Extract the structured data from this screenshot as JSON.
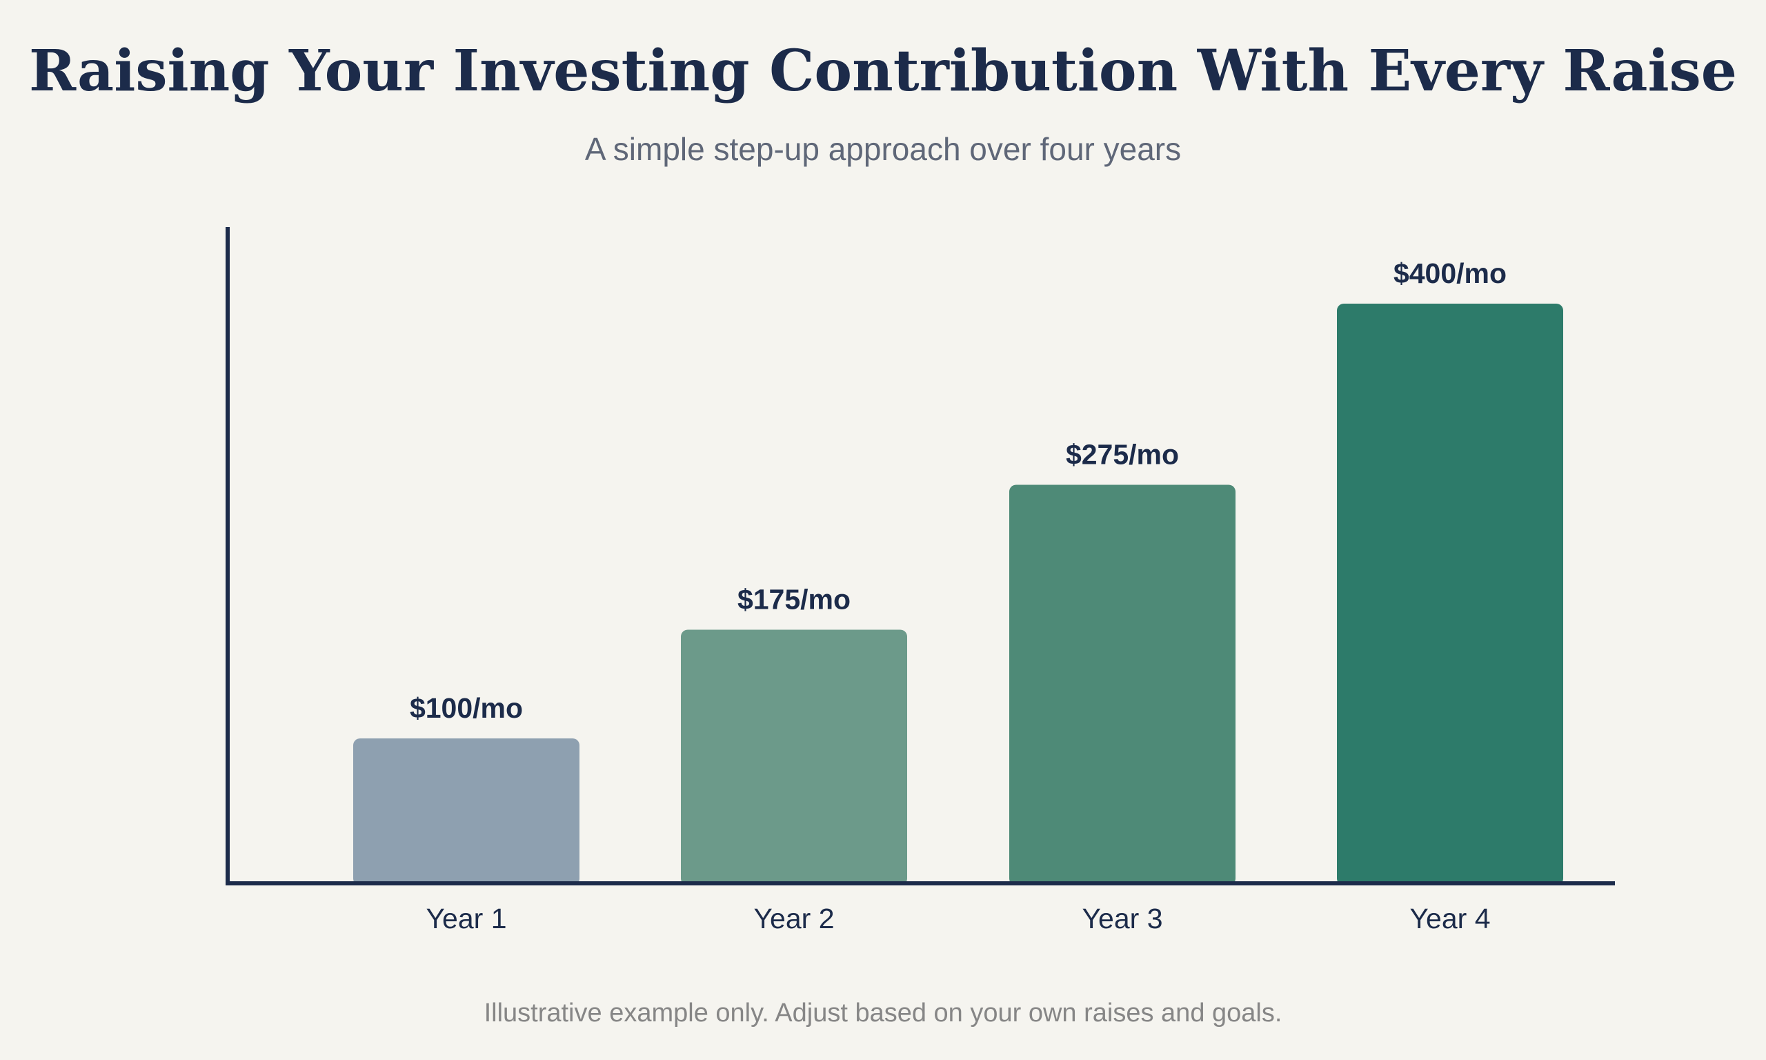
{
  "chart_data": {
    "type": "bar",
    "title": "Raising Your Investing Contribution With Every Raise",
    "subtitle": "A simple step-up approach over four years",
    "categories": [
      "Year 1",
      "Year 2",
      "Year 3",
      "Year 4"
    ],
    "values": [
      100,
      175,
      275,
      400
    ],
    "data_labels": [
      "$100/mo",
      "$175/mo",
      "$275/mo",
      "$400/mo"
    ],
    "bar_colors": [
      "#8ea0b0",
      "#6c9a8a",
      "#4e8a77",
      "#2d7b6a"
    ],
    "xlabel": "",
    "ylabel": "",
    "ylim": [
      0,
      450
    ],
    "grid": false,
    "legend": "none"
  },
  "footnote": "Illustrative example only. Adjust based on your own raises and goals.",
  "colors": {
    "background": "#f5f4ef",
    "axis": "#1c2b4a",
    "title": "#1c2b4a",
    "subtitle": "#5f6778",
    "footnote": "#868686"
  }
}
